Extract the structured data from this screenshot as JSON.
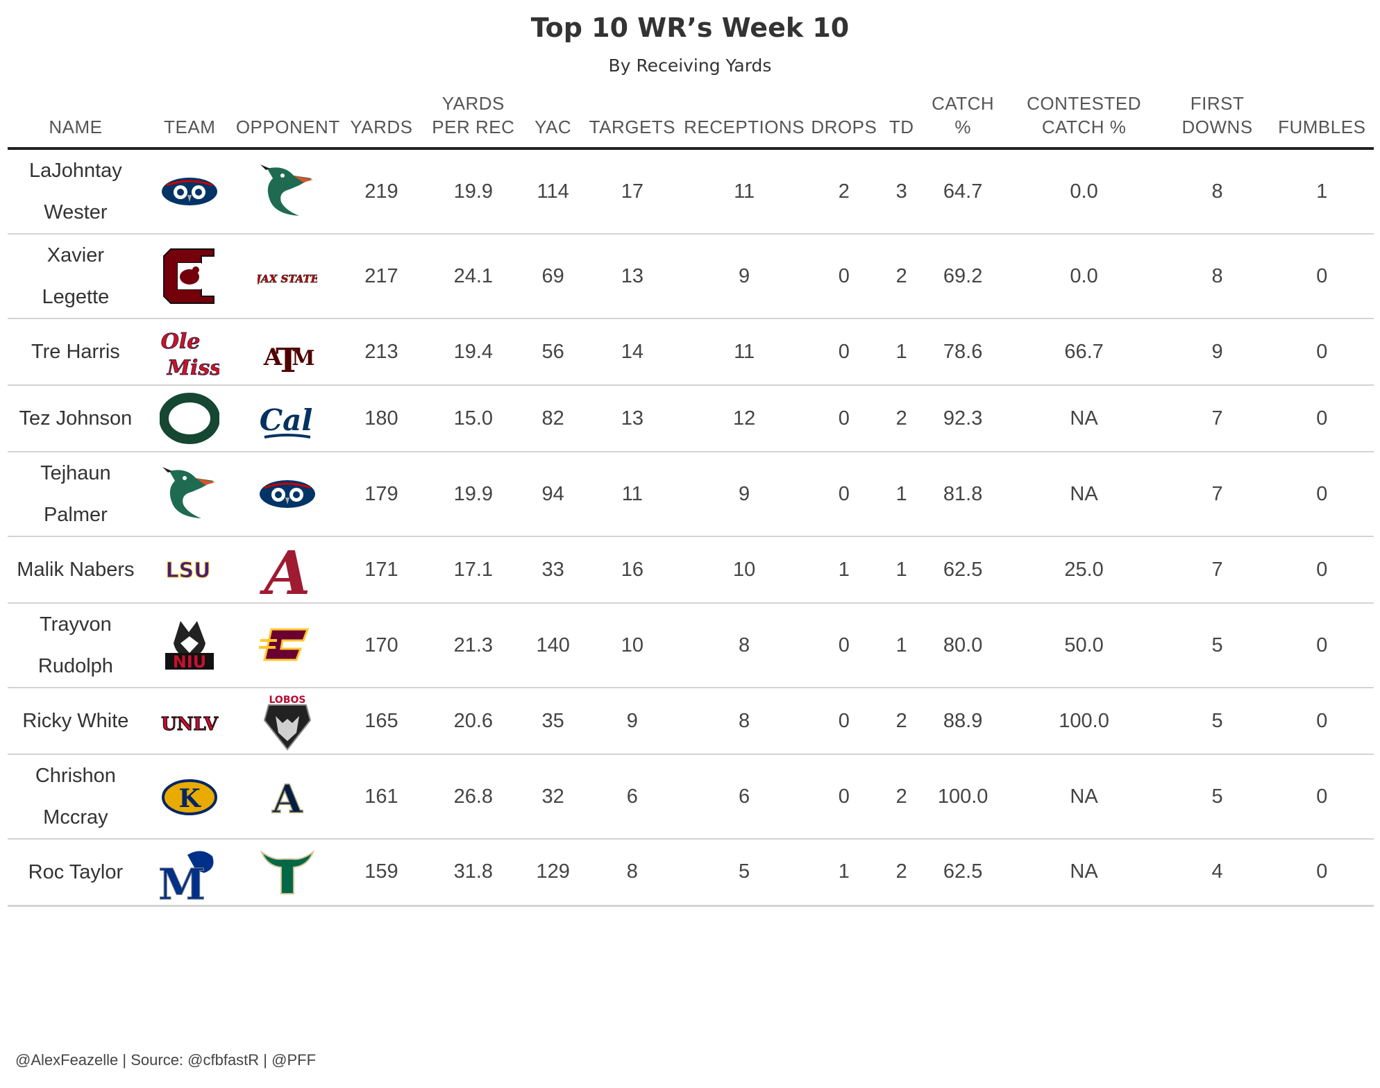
{
  "chart_data": {
    "type": "table",
    "title": "Top 10 WR’s Week 10",
    "subtitle": "By Receiving Yards",
    "columns": [
      "NAME",
      "TEAM",
      "OPPONENT",
      "YARDS",
      "YARDS PER REC",
      "YAC",
      "TARGETS",
      "RECEPTIONS",
      "DROPS",
      "TD",
      "CATCH %",
      "CONTESTED CATCH %",
      "FIRST DOWNS",
      "FUMBLES"
    ],
    "rows": [
      {
        "name": "LaJohntay Wester",
        "team": "fau-owl-logo",
        "opponent": "uab-dragon-logo",
        "yards": "219",
        "ypr": "19.9",
        "yac": "114",
        "targets": "17",
        "receptions": "11",
        "drops": "2",
        "td": "3",
        "catch_pct": "64.7",
        "contested": "0.0",
        "first_downs": "8",
        "fumbles": "1"
      },
      {
        "name": "Xavier Legette",
        "team": "south-carolina-logo",
        "opponent": "jax-state-logo",
        "yards": "217",
        "ypr": "24.1",
        "yac": "69",
        "targets": "13",
        "receptions": "9",
        "drops": "0",
        "td": "2",
        "catch_pct": "69.2",
        "contested": "0.0",
        "first_downs": "8",
        "fumbles": "0"
      },
      {
        "name": "Tre Harris",
        "team": "ole-miss-logo",
        "opponent": "texas-am-logo",
        "yards": "213",
        "ypr": "19.4",
        "yac": "56",
        "targets": "14",
        "receptions": "11",
        "drops": "0",
        "td": "1",
        "catch_pct": "78.6",
        "contested": "66.7",
        "first_downs": "9",
        "fumbles": "0"
      },
      {
        "name": "Tez Johnson",
        "team": "oregon-logo",
        "opponent": "cal-logo",
        "yards": "180",
        "ypr": "15.0",
        "yac": "82",
        "targets": "13",
        "receptions": "12",
        "drops": "0",
        "td": "2",
        "catch_pct": "92.3",
        "contested": "NA",
        "first_downs": "7",
        "fumbles": "0"
      },
      {
        "name": "Tejhaun Palmer",
        "team": "uab-dragon-logo",
        "opponent": "fau-owl-logo",
        "yards": "179",
        "ypr": "19.9",
        "yac": "94",
        "targets": "11",
        "receptions": "9",
        "drops": "0",
        "td": "1",
        "catch_pct": "81.8",
        "contested": "NA",
        "first_downs": "7",
        "fumbles": "0"
      },
      {
        "name": "Malik Nabers",
        "team": "lsu-logo",
        "opponent": "alabama-logo",
        "yards": "171",
        "ypr": "17.1",
        "yac": "33",
        "targets": "16",
        "receptions": "10",
        "drops": "1",
        "td": "1",
        "catch_pct": "62.5",
        "contested": "25.0",
        "first_downs": "7",
        "fumbles": "0"
      },
      {
        "name": "Trayvon Rudolph",
        "team": "niu-husky-logo",
        "opponent": "central-michigan-logo",
        "yards": "170",
        "ypr": "21.3",
        "yac": "140",
        "targets": "10",
        "receptions": "8",
        "drops": "0",
        "td": "1",
        "catch_pct": "80.0",
        "contested": "50.0",
        "first_downs": "5",
        "fumbles": "0"
      },
      {
        "name": "Ricky White",
        "team": "unlv-logo",
        "opponent": "new-mexico-lobos-logo",
        "yards": "165",
        "ypr": "20.6",
        "yac": "35",
        "targets": "9",
        "receptions": "8",
        "drops": "0",
        "td": "2",
        "catch_pct": "88.9",
        "contested": "100.0",
        "first_downs": "5",
        "fumbles": "0"
      },
      {
        "name": "Chrishon Mccray",
        "team": "kent-state-logo",
        "opponent": "akron-logo",
        "yards": "161",
        "ypr": "26.8",
        "yac": "32",
        "targets": "6",
        "receptions": "6",
        "drops": "0",
        "td": "2",
        "catch_pct": "100.0",
        "contested": "NA",
        "first_downs": "5",
        "fumbles": "0"
      },
      {
        "name": "Roc Taylor",
        "team": "memphis-tiger-logo",
        "opponent": "usf-bull-logo",
        "yards": "159",
        "ypr": "31.8",
        "yac": "129",
        "targets": "8",
        "receptions": "5",
        "drops": "1",
        "td": "2",
        "catch_pct": "62.5",
        "contested": "NA",
        "first_downs": "4",
        "fumbles": "0"
      }
    ]
  },
  "header_lines": {
    "NAME": [
      "NAME"
    ],
    "TEAM": [
      "TEAM"
    ],
    "OPPONENT": [
      "OPPONENT"
    ],
    "YARDS": [
      "YARDS"
    ],
    "YARDS PER REC": [
      "YARDS",
      "PER REC"
    ],
    "YAC": [
      "YAC"
    ],
    "TARGETS": [
      "TARGETS"
    ],
    "RECEPTIONS": [
      "RECEPTIONS"
    ],
    "DROPS": [
      "DROPS"
    ],
    "TD": [
      "TD"
    ],
    "CATCH %": [
      "CATCH",
      "%"
    ],
    "CONTESTED CATCH %": [
      "CONTESTED",
      "CATCH %"
    ],
    "FIRST DOWNS": [
      "FIRST",
      "DOWNS"
    ],
    "FUMBLES": [
      "FUMBLES"
    ]
  },
  "name_lines": [
    [
      "LaJohntay",
      "Wester"
    ],
    [
      "Xavier",
      "Legette"
    ],
    [
      "Tre Harris"
    ],
    [
      "Tez Johnson"
    ],
    [
      "Tejhaun",
      "Palmer"
    ],
    [
      "Malik Nabers"
    ],
    [
      "Trayvon",
      "Rudolph"
    ],
    [
      "Ricky White"
    ],
    [
      "Chrishon",
      "Mccray"
    ],
    [
      "Roc Taylor"
    ]
  ],
  "logo_text": {
    "jax-state-logo": "JAX STATE",
    "ole-miss-logo": [
      "Ole",
      "Miss"
    ],
    "texas-am-logo": "ATM",
    "cal-logo": "Cal",
    "lsu-logo": "LSU",
    "niu-husky-logo": "NIU",
    "unlv-logo": "UNLV",
    "new-mexico-lobos-logo": "LOBOS",
    "kent-state-logo": "K",
    "akron-logo": "A",
    "memphis-tiger-logo": "M",
    "south-carolina-logo": "C"
  },
  "colors": {
    "fau": "#003366",
    "fau_red": "#cc0000",
    "uab": "#1e6b52",
    "gamecock": "#73000a",
    "jax": "#cc0000",
    "olemiss": "#ce1126",
    "olemiss_navy": "#14213d",
    "tamu": "#500000",
    "oregon": "#154733",
    "oregon_yellow": "#fee123",
    "cal": "#003262",
    "cal_gold": "#fdb515",
    "lsu": "#461d7c",
    "lsu_gold": "#fdd023",
    "bama": "#9e1b32",
    "niu": "#c8102e",
    "cmu": "#6a0032",
    "cmu_gold": "#ffc82e",
    "unlv": "#cf0a2c",
    "unm": "#ba0c2f",
    "kent": "#002664",
    "kent_gold": "#eaab00",
    "akron": "#041e42",
    "akron_gold": "#a89968",
    "memphis": "#003087",
    "usf": "#006747",
    "usf_gold": "#cfc493"
  },
  "footer": "@AlexFeazelle | Source: @cfbfastR | @PFF"
}
